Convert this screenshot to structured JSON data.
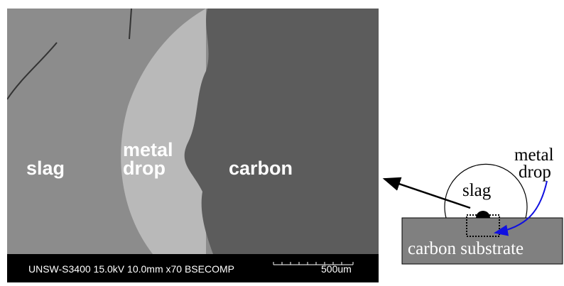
{
  "sem_image": {
    "labels": {
      "slag": "slag",
      "metal_drop": [
        "metal",
        "drop"
      ],
      "carbon": "carbon"
    },
    "info_bar": {
      "parameters": "UNSW-S3400 15.0kV 10.0mm x70 BSECOMP",
      "scale": "500um"
    }
  },
  "schematic": {
    "metal_drop": [
      "metal",
      "drop"
    ],
    "slag": "slag",
    "substrate": "carbon substrate"
  }
}
